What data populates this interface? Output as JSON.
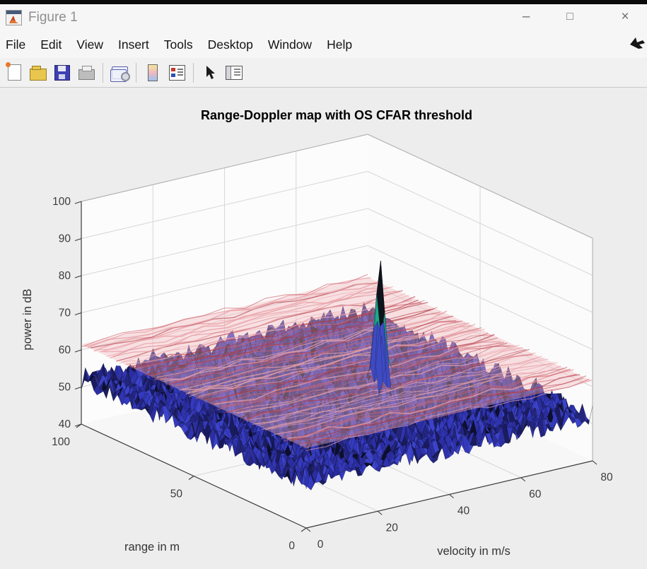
{
  "window": {
    "app_icon": "matlab-logo-icon",
    "title": "Figure 1",
    "controls": {
      "minimize": "–",
      "maximize": "□",
      "close": "×"
    }
  },
  "menu_bar": {
    "items": [
      "File",
      "Edit",
      "View",
      "Insert",
      "Tools",
      "Desktop",
      "Window",
      "Help"
    ]
  },
  "toolbar": {
    "buttons": [
      "new-figure",
      "open-file",
      "save-figure",
      "print-figure",
      "link-plot",
      "insert-colorbar",
      "insert-legend",
      "edit-plot",
      "show-plot-tools"
    ]
  },
  "chart_data": {
    "type": "surface3d",
    "title": "Range-Doppler map with OS CFAR threshold",
    "axes": {
      "x": {
        "label": "velocity in m/s",
        "ticks": [
          0,
          20,
          40,
          60,
          80
        ],
        "range": [
          0,
          80
        ]
      },
      "y": {
        "label": "range in m",
        "ticks": [
          0,
          50,
          100
        ],
        "range": [
          0,
          100
        ]
      },
      "z": {
        "label": "power in dB",
        "ticks": [
          40,
          50,
          60,
          70,
          80,
          90,
          100
        ],
        "range": [
          40,
          100
        ]
      }
    },
    "series": [
      {
        "name": "range-doppler power surface",
        "kind": "noise-surface",
        "noise_floor_db": 49.3,
        "noise_amplitude_db": 5.8,
        "color_low": "#2b2ea2",
        "color_high": "#19ab8b"
      },
      {
        "name": "OS CFAR threshold",
        "kind": "plane",
        "level_db": 61.5,
        "color": "#e8a3aa",
        "style": "semi-transparent striated"
      }
    ],
    "target_peak": {
      "range_m": 50,
      "velocity_mps": 52,
      "power_db": 85.5
    },
    "grid": {
      "rows": 72,
      "cols": 72
    },
    "grid_on": true,
    "legend": "none",
    "seed": 7
  }
}
